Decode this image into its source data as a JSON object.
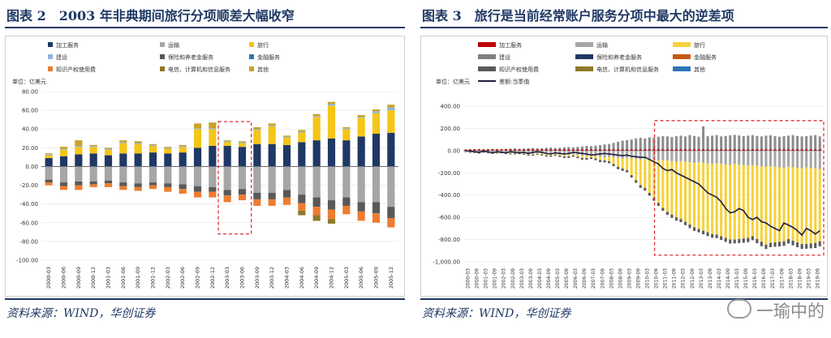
{
  "left": {
    "title": "图表 2　2003 年非典期间旅行分项顺差大幅收窄",
    "source": "资料来源：WIND，华创证券",
    "chart_data": {
      "type": "bar",
      "stacked": true,
      "unit": "单位：亿美元",
      "ylim": [
        -100,
        80
      ],
      "yticks": [
        "80.00",
        "60.00",
        "40.00",
        "20.00",
        "0.00",
        "-20.00",
        "-40.00",
        "-60.00",
        "-80.00",
        "-100.00"
      ],
      "categories": [
        "2000-03",
        "2000-06",
        "2000-09",
        "2000-12",
        "2001-03",
        "2001-06",
        "2001-09",
        "2001-12",
        "2002-03",
        "2002-06",
        "2002-09",
        "2002-12",
        "2003-03",
        "2003-06",
        "2003-09",
        "2003-12",
        "2004-03",
        "2004-06",
        "2004-09",
        "2004-12",
        "2005-03",
        "2005-06",
        "2005-09",
        "2005-12"
      ],
      "xticks": [
        "2000-03",
        "2000-09",
        "2001-03",
        "2001-09",
        "2002-03",
        "2002-09",
        "2003-03",
        "2003-09",
        "2004-03",
        "2004-09",
        "2005-03",
        "2005-09",
        "2000-06",
        "2000-12",
        "2001-06",
        "2001-12",
        "2002-06",
        "2002-12",
        "2003-06",
        "2003-12",
        "2004-06",
        "2004-12",
        "2005-06",
        "2005-12"
      ],
      "legend": [
        "加工服务",
        "运输",
        "旅行",
        "建设",
        "保险和养老金服务",
        "金融服务",
        "知识产权使用费",
        "电信、计算机和信息服务",
        "其他"
      ],
      "colors": {
        "加工服务": "#1f3864",
        "运输": "#a6a6a6",
        "旅行": "#f5c518",
        "建设": "#8fb4d6",
        "保险和养老金服务": "#595959",
        "金融服务": "#2e75b6",
        "知识产权使用费": "#ed7d31",
        "电信、计算机和信息服务": "#8b7a2a",
        "其他": "#c9a227"
      },
      "series": [
        {
          "name": "加工服务",
          "values": [
            9,
            11,
            13,
            14,
            12,
            14,
            14,
            15,
            14,
            15,
            20,
            22,
            22,
            21,
            24,
            24,
            23,
            26,
            28,
            30,
            28,
            32,
            35,
            36
          ]
        },
        {
          "name": "运输",
          "values": [
            -14,
            -17,
            -16,
            -16,
            -15,
            -17,
            -18,
            -17,
            -18,
            -19,
            -21,
            -22,
            -25,
            -24,
            -28,
            -28,
            -25,
            -30,
            -33,
            -36,
            -33,
            -38,
            -38,
            -43
          ]
        },
        {
          "name": "旅行",
          "values": [
            3,
            7,
            8,
            7,
            6,
            11,
            10,
            7,
            5,
            6,
            20,
            18,
            4,
            4,
            15,
            19,
            8,
            10,
            25,
            35,
            12,
            20,
            22,
            24
          ]
        },
        {
          "name": "建设",
          "values": [
            1,
            1,
            1,
            1,
            1,
            1,
            1,
            1,
            1,
            1,
            1,
            1,
            1,
            1,
            1,
            1,
            1,
            1,
            1,
            2,
            1,
            1,
            2,
            3
          ]
        },
        {
          "name": "保险和养老金服务",
          "values": [
            -3,
            -4,
            -4,
            -3,
            -3,
            -4,
            -4,
            -3,
            -4,
            -5,
            -6,
            -5,
            -6,
            -6,
            -7,
            -7,
            -8,
            -9,
            -10,
            -10,
            -9,
            -10,
            -12,
            -12
          ]
        },
        {
          "name": "金融服务",
          "values": [
            0,
            0,
            0,
            0,
            0,
            0,
            0,
            0,
            0,
            0,
            0,
            0,
            0,
            0,
            0,
            0,
            0,
            0,
            0,
            0,
            0,
            0,
            0,
            0
          ]
        },
        {
          "name": "知识产权使用费",
          "values": [
            -3,
            -4,
            -5,
            -3,
            -4,
            -4,
            -4,
            -4,
            -5,
            -5,
            -6,
            -6,
            -7,
            -6,
            -7,
            -7,
            -8,
            -8,
            -9,
            -10,
            -9,
            -10,
            -10,
            -10
          ]
        },
        {
          "name": "电信、计算机和信息服务",
          "values": [
            0,
            0,
            0,
            0,
            0,
            0,
            0,
            0,
            0,
            0,
            0,
            0,
            0,
            0,
            0,
            0,
            0,
            -5,
            -6,
            -5,
            0,
            0,
            0,
            0
          ]
        },
        {
          "name": "其他",
          "values": [
            1,
            2,
            6,
            1,
            1,
            2,
            2,
            1,
            1,
            1,
            5,
            6,
            1,
            1,
            2,
            2,
            1,
            2,
            2,
            2,
            1,
            2,
            2,
            3
          ]
        }
      ],
      "highlight": {
        "from": "2003-03",
        "to": "2003-06",
        "style": "red-dashed"
      },
      "legend_position": "top"
    }
  },
  "right": {
    "title": "图表 3　旅行是当前经常账户服务分项中最大的逆差项",
    "source": "资料来源：WIND，华创证券",
    "chart_data": {
      "type": "bar+line",
      "stacked": true,
      "unit": "单位：亿美元",
      "ylim": [
        -1000,
        400
      ],
      "yticks": [
        "400.00",
        "200.00",
        "0.00",
        "-200.00",
        "-400.00",
        "-600.00",
        "-800.00",
        "-1,000.00"
      ],
      "x_start": "2000-03",
      "x_end": "2018-12",
      "xticks": [
        "2000-03",
        "2000-09",
        "2001-03",
        "2001-09",
        "2002-03",
        "2002-09",
        "2003-03",
        "2003-09",
        "2004-03",
        "2004-09",
        "2005-03",
        "2005-09",
        "2006-03",
        "2006-09",
        "2007-03",
        "2007-09",
        "2008-03",
        "2008-09",
        "2009-03",
        "2009-09",
        "2010-03",
        "2010-09",
        "2011-03",
        "2011-09",
        "2012-03",
        "2012-09",
        "2013-03",
        "2013-09",
        "2014-03",
        "2014-09",
        "2015-03",
        "2015-09",
        "2016-03",
        "2016-09",
        "2017-03",
        "2017-09",
        "2018-03",
        "2018-09",
        "2019-03",
        "2019-09"
      ],
      "legend": [
        "加工服务",
        "运输",
        "旅行",
        "建设",
        "保险和养老金服务",
        "金融服务",
        "知识产权使用费",
        "电信、计算机和信息服务",
        "其他",
        "差额:当季值"
      ],
      "colors": {
        "加工服务": "#c00000",
        "运输": "#a6a6a6",
        "旅行": "#f5d23a",
        "建设": "#7f7f7f",
        "保险和养老金服务": "#1f3864",
        "金融服务": "#c55a11",
        "知识产权使用费": "#595959",
        "电信、计算机和信息服务": "#8b7a2a",
        "其他": "#2e75b6",
        "差额:当季值": "#1f1f3d"
      },
      "balance": [
        0,
        -5,
        -10,
        -15,
        -5,
        -10,
        -20,
        -10,
        -15,
        -20,
        -10,
        -15,
        -20,
        -15,
        -25,
        -15,
        -10,
        -15,
        -25,
        -30,
        -20,
        -25,
        -30,
        -25,
        -15,
        -20,
        -25,
        -30,
        -40,
        -35,
        -30,
        -25,
        -30,
        -35,
        -40,
        -45,
        -40,
        -50,
        -55,
        -60,
        -60,
        -80,
        -100,
        -120,
        -160,
        -180,
        -170,
        -200,
        -220,
        -240,
        -260,
        -280,
        -300,
        -340,
        -380,
        -400,
        -420,
        -460,
        -520,
        -560,
        -550,
        -520,
        -540,
        -600,
        -620,
        -600,
        -640,
        -650,
        -680,
        -700,
        -720,
        -650,
        -670,
        -690,
        -720,
        -760,
        -700,
        -720,
        -750,
        -720
      ],
      "positives": [
        10,
        12,
        14,
        15,
        12,
        14,
        16,
        15,
        14,
        16,
        18,
        20,
        16,
        18,
        22,
        24,
        20,
        22,
        26,
        28,
        24,
        26,
        30,
        32,
        30,
        34,
        38,
        42,
        40,
        44,
        50,
        56,
        60,
        70,
        80,
        90,
        95,
        100,
        110,
        115,
        110,
        120,
        118,
        125,
        130,
        128,
        122,
        130,
        135,
        128,
        140,
        132,
        125,
        220,
        130,
        135,
        140,
        128,
        132,
        138,
        142,
        136,
        130,
        135,
        140,
        132,
        128,
        135,
        138,
        130,
        125,
        130,
        135,
        140,
        132,
        128,
        130,
        135,
        140,
        128
      ],
      "transport": [
        -10,
        -12,
        -14,
        -15,
        -13,
        -15,
        -17,
        -16,
        -15,
        -18,
        -20,
        -22,
        -20,
        -22,
        -26,
        -28,
        -24,
        -26,
        -30,
        -33,
        -30,
        -34,
        -38,
        -40,
        -35,
        -40,
        -45,
        -48,
        -45,
        -48,
        -55,
        -60,
        -55,
        -60,
        -65,
        -70,
        -65,
        -70,
        -75,
        -80,
        -75,
        -80,
        -85,
        -90,
        -85,
        -90,
        -95,
        -100,
        -95,
        -100,
        -105,
        -110,
        -105,
        -110,
        -115,
        -120,
        -115,
        -120,
        -125,
        -130,
        -120,
        -125,
        -130,
        -135,
        -130,
        -135,
        -140,
        -145,
        -140,
        -145,
        -150,
        -155,
        -145,
        -150,
        -155,
        -160,
        -150,
        -155,
        -160,
        -165
      ],
      "travel": [
        3,
        -2,
        -3,
        -5,
        2,
        -3,
        -5,
        -4,
        -2,
        -4,
        -6,
        -5,
        -3,
        -6,
        -8,
        -7,
        -4,
        -8,
        -12,
        -10,
        -6,
        -10,
        -14,
        -12,
        -8,
        -14,
        -20,
        -18,
        -15,
        -22,
        -30,
        -28,
        -40,
        -60,
        -80,
        -90,
        -110,
        -150,
        -190,
        -230,
        -260,
        -300,
        -340,
        -380,
        -430,
        -460,
        -480,
        -500,
        -520,
        -540,
        -560,
        -580,
        -600,
        -610,
        -620,
        -630,
        -640,
        -650,
        -660,
        -670,
        -680,
        -670,
        -660,
        -650,
        -640,
        -660,
        -680,
        -700,
        -690,
        -680,
        -670,
        -660,
        -650,
        -660,
        -670,
        -680,
        -690,
        -680,
        -670,
        -650
      ],
      "other_neg": [
        -4,
        -5,
        -5,
        -6,
        -5,
        -6,
        -7,
        -6,
        -6,
        -7,
        -8,
        -8,
        -8,
        -9,
        -10,
        -10,
        -9,
        -10,
        -12,
        -12,
        -11,
        -12,
        -14,
        -14,
        -12,
        -14,
        -16,
        -16,
        -15,
        -16,
        -18,
        -18,
        -18,
        -20,
        -22,
        -22,
        -20,
        -22,
        -24,
        -25,
        -24,
        -25,
        -26,
        -27,
        -26,
        -28,
        -30,
        -30,
        -28,
        -30,
        -32,
        -32,
        -30,
        -32,
        -34,
        -34,
        -32,
        -34,
        -36,
        -36,
        -34,
        -36,
        -38,
        -38,
        -36,
        -38,
        -40,
        -40,
        -38,
        -40,
        -42,
        -42,
        -40,
        -42,
        -44,
        -44,
        -42,
        -44,
        -46,
        -46
      ],
      "highlight": {
        "from": "2011-03",
        "to": "2018-12",
        "style": "red-dashed"
      },
      "legend_position": "top"
    }
  },
  "watermark": "一瑜中的"
}
